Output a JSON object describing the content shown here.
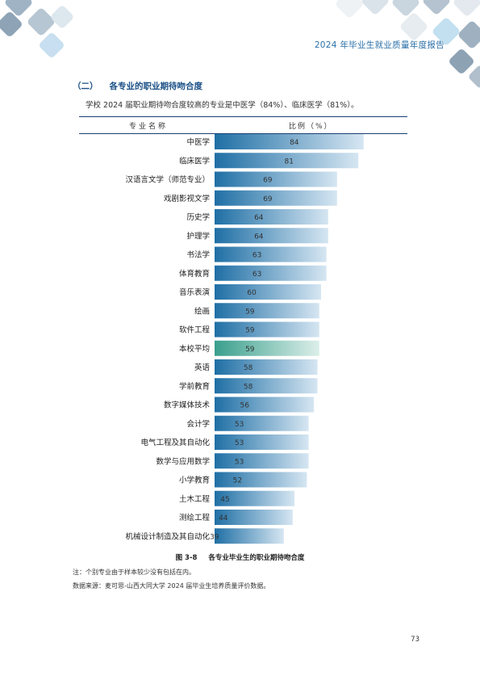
{
  "header": {
    "title": "2024 年毕业生就业质量年度报告"
  },
  "section": {
    "number": "（二）",
    "title": "各专业的职业期待吻合度"
  },
  "intro": "学校 2024 届职业期待吻合度较高的专业是中医学（84%）、临床医学（81%）。",
  "table": {
    "col1": "专业名称",
    "col2": "比例（%）"
  },
  "colors": {
    "bar_dark": "#1f6fa5",
    "bar_light": "#d6e6f2",
    "highlight_dark": "#3a9f8d",
    "highlight_light": "#dcefe9",
    "rule": "#1a3e72"
  },
  "chart_data": {
    "type": "bar",
    "orientation": "horizontal",
    "title": "各专业毕业生的职业期待吻合度",
    "xlabel": "比例（%）",
    "ylabel": "专业名称",
    "xlim": [
      0,
      100
    ],
    "highlight_category": "本校平均",
    "categories": [
      "中医学",
      "临床医学",
      "汉语言文学（师范专业）",
      "戏剧影视文学",
      "历史学",
      "护理学",
      "书法学",
      "体育教育",
      "音乐表演",
      "绘画",
      "软件工程",
      "本校平均",
      "英语",
      "学前教育",
      "数字媒体技术",
      "会计学",
      "电气工程及其自动化",
      "数学与应用数学",
      "小学教育",
      "土木工程",
      "测绘工程",
      "机械设计制造及其自动化"
    ],
    "values": [
      84,
      81,
      69,
      69,
      64,
      64,
      63,
      63,
      60,
      59,
      59,
      59,
      58,
      58,
      56,
      53,
      53,
      53,
      52,
      45,
      44,
      39
    ]
  },
  "caption": {
    "fig": "图 3-8",
    "text": "各专业毕业生的职业期待吻合度"
  },
  "notes": [
    "注：个别专业由于样本较少没有包括在内。",
    "数据来源：麦可思-山西大同大学 2024 届毕业生培养质量评价数据。"
  ],
  "page_number": "73"
}
